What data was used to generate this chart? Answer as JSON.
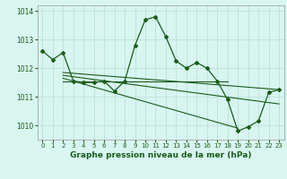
{
  "title": "Graphe pression niveau de la mer (hPa)",
  "bg_color": "#d8f5f0",
  "grid_color": "#b8ddd8",
  "line_color": "#1a5c1a",
  "xlim": [
    -0.5,
    23.5
  ],
  "ylim": [
    1009.5,
    1014.2
  ],
  "yticks": [
    1010,
    1011,
    1012,
    1013,
    1014
  ],
  "xticks": [
    0,
    1,
    2,
    3,
    4,
    5,
    6,
    7,
    8,
    9,
    10,
    11,
    12,
    13,
    14,
    15,
    16,
    17,
    18,
    19,
    20,
    21,
    22,
    23
  ],
  "main_line": [
    [
      0,
      1012.6
    ],
    [
      1,
      1012.3
    ],
    [
      2,
      1012.55
    ],
    [
      3,
      1011.55
    ],
    [
      4,
      1011.5
    ],
    [
      5,
      1011.5
    ],
    [
      6,
      1011.55
    ],
    [
      7,
      1011.2
    ],
    [
      8,
      1011.55
    ],
    [
      9,
      1012.8
    ],
    [
      10,
      1013.7
    ],
    [
      11,
      1013.8
    ],
    [
      12,
      1013.1
    ],
    [
      13,
      1012.25
    ],
    [
      14,
      1012.0
    ],
    [
      15,
      1012.2
    ],
    [
      16,
      1012.0
    ],
    [
      17,
      1011.55
    ],
    [
      18,
      1010.9
    ],
    [
      19,
      1009.8
    ],
    [
      20,
      1009.95
    ],
    [
      21,
      1010.15
    ],
    [
      22,
      1011.15
    ],
    [
      23,
      1011.25
    ]
  ],
  "flat_line": [
    [
      2,
      1011.55
    ],
    [
      18,
      1011.55
    ]
  ],
  "trend_line1": [
    [
      2,
      1011.85
    ],
    [
      23,
      1011.25
    ]
  ],
  "trend_line2": [
    [
      2,
      1011.75
    ],
    [
      23,
      1010.75
    ]
  ],
  "trend_line3": [
    [
      2,
      1011.65
    ],
    [
      19,
      1009.9
    ]
  ]
}
